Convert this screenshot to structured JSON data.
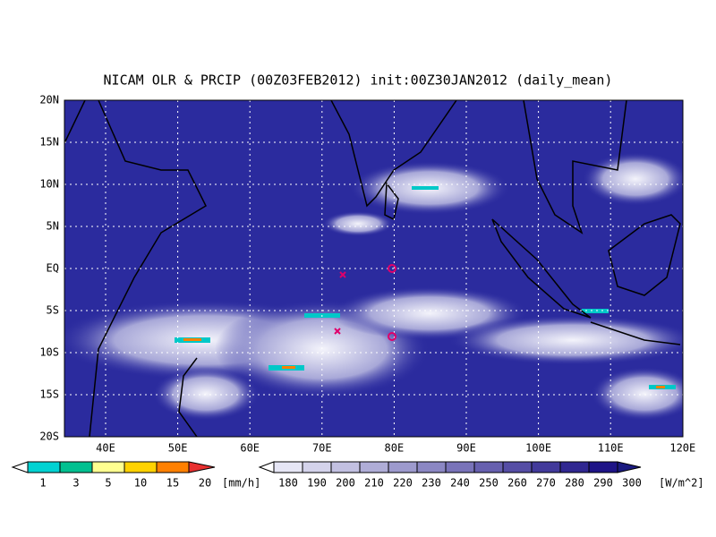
{
  "title": "NICAM OLR & PRCIP (00Z03FEB2012) init:00Z30JAN2012 (daily_mean)",
  "lat_labels": [
    "20N",
    "15N",
    "10N",
    "5N",
    "EQ",
    "5S",
    "10S",
    "15S",
    "20S"
  ],
  "lon_labels": [
    "40E",
    "50E",
    "60E",
    "70E",
    "80E",
    "90E",
    "100E",
    "110E",
    "120E"
  ],
  "precip_colorbar": {
    "labels": [
      "1",
      "3",
      "5",
      "10",
      "15",
      "20"
    ],
    "unit": "[mm/h]"
  },
  "olr_colorbar": {
    "labels": [
      "180",
      "190",
      "200",
      "210",
      "220",
      "230",
      "240",
      "250",
      "260",
      "270",
      "280",
      "290",
      "300"
    ],
    "unit": "[W/m^2]"
  }
}
